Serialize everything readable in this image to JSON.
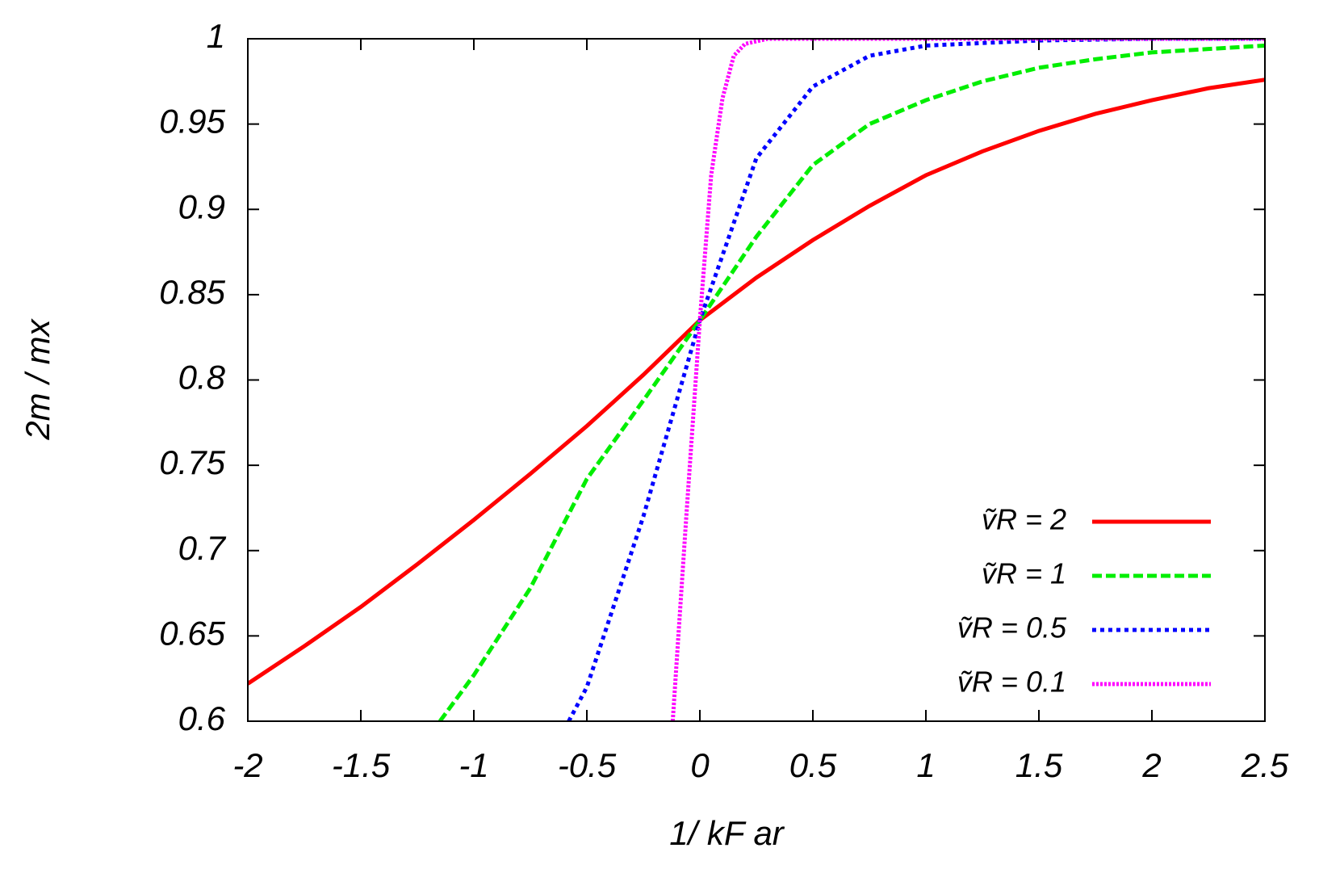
{
  "chart_data": {
    "type": "line",
    "xlabel": "1/ kF ar",
    "ylabel": "2m / mx",
    "xlim": [
      -2,
      2.5
    ],
    "ylim": [
      0.6,
      1
    ],
    "xticks": [
      -2,
      -1.5,
      -1,
      -0.5,
      0,
      0.5,
      1,
      1.5,
      2,
      2.5
    ],
    "yticks": [
      0.6,
      0.65,
      0.7,
      0.75,
      0.8,
      0.85,
      0.9,
      0.95,
      1
    ],
    "legend": "lower right",
    "series": [
      {
        "name": "ṽR = 2",
        "color": "#ff0000",
        "x": [
          -2,
          -1.75,
          -1.5,
          -1.25,
          -1,
          -0.75,
          -0.5,
          -0.25,
          0,
          0.25,
          0.5,
          0.75,
          1,
          1.25,
          1.5,
          1.75,
          2,
          2.25,
          2.5
        ],
        "values": [
          0.622,
          0.644,
          0.667,
          0.692,
          0.718,
          0.745,
          0.773,
          0.803,
          0.835,
          0.86,
          0.882,
          0.902,
          0.92,
          0.934,
          0.946,
          0.956,
          0.964,
          0.971,
          0.976
        ]
      },
      {
        "name": "ṽR = 1",
        "color": "#00ee00",
        "x": [
          -1.15,
          -1,
          -0.75,
          -0.5,
          -0.25,
          0,
          0.25,
          0.5,
          0.75,
          1,
          1.25,
          1.5,
          1.75,
          2,
          2.25,
          2.5
        ],
        "values": [
          0.6,
          0.627,
          0.678,
          0.742,
          0.788,
          0.835,
          0.884,
          0.926,
          0.95,
          0.964,
          0.975,
          0.983,
          0.988,
          0.992,
          0.994,
          0.996
        ]
      },
      {
        "name": "ṽR = 0.5",
        "color": "#0000ff",
        "x": [
          -0.58,
          -0.5,
          -0.25,
          0,
          0.25,
          0.5,
          0.75,
          1,
          1.5,
          2,
          2.5
        ],
        "values": [
          0.6,
          0.62,
          0.72,
          0.835,
          0.93,
          0.972,
          0.99,
          0.996,
          0.999,
          1,
          1
        ]
      },
      {
        "name": "ṽR = 0.1",
        "color": "#ff00ff",
        "x": [
          -0.12,
          -0.06,
          0,
          0.05,
          0.1,
          0.15,
          0.2,
          0.3,
          2.5
        ],
        "values": [
          0.6,
          0.72,
          0.835,
          0.92,
          0.965,
          0.99,
          0.997,
          1,
          1
        ]
      }
    ]
  }
}
